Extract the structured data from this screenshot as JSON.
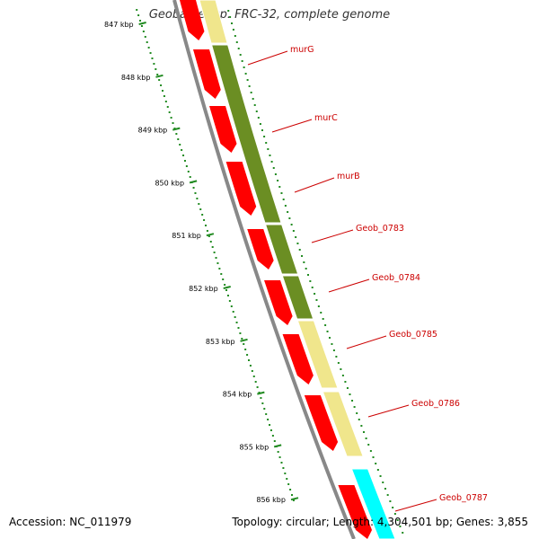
{
  "title": "Geobacter sp. FRC-32, complete genome",
  "accession": "Accession: NC_011979",
  "topology": "Topology: circular; Length: 4,304,501 bp; Genes: 3,855",
  "ticks": [
    "847 kbp",
    "848 kbp",
    "849 kbp",
    "850 kbp",
    "851 kbp",
    "852 kbp",
    "853 kbp",
    "854 kbp",
    "855 kbp",
    "856 kbp"
  ],
  "genes": [
    "murG",
    "murC",
    "murB",
    "Geob_0783",
    "Geob_0784",
    "Geob_0785",
    "Geob_0786",
    "Geob_0787"
  ],
  "colors": {
    "cds": "#ff0000",
    "olive": "#6b8e23",
    "tan": "#f0e68c",
    "cyan": "#00ffff",
    "label": "#cc0000",
    "tick": "#228b22",
    "backbone": "#888888"
  }
}
